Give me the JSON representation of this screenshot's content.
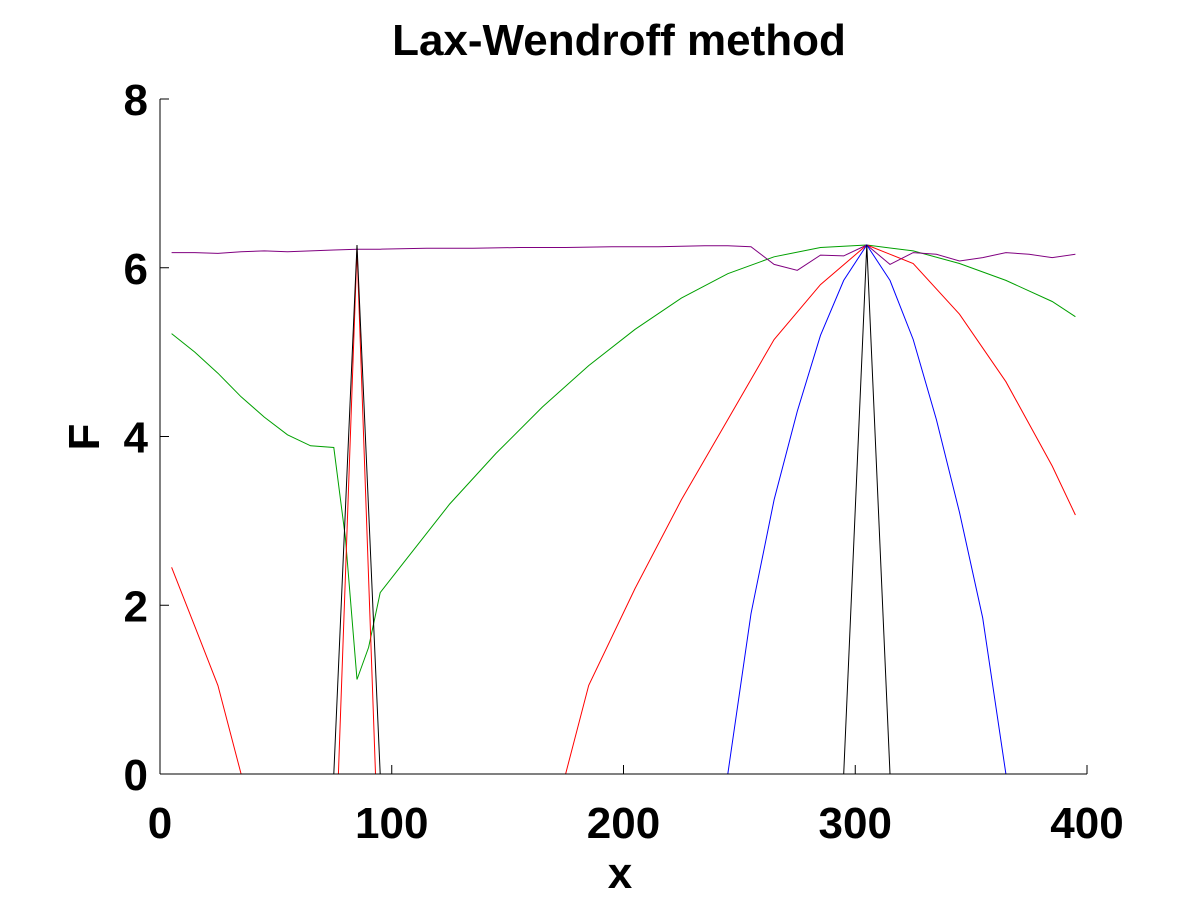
{
  "chart_data": {
    "type": "line",
    "title": "Lax-Wendroff method",
    "xlabel": "x",
    "ylabel": "F",
    "xlim": [
      0,
      400
    ],
    "ylim": [
      0,
      8
    ],
    "xticks": [
      0,
      100,
      200,
      300,
      400
    ],
    "yticks": [
      0,
      2,
      4,
      6,
      8
    ],
    "grid": false,
    "series": [
      {
        "color": "#00a000",
        "x": [
          5,
          15,
          25,
          35,
          45,
          55,
          65,
          75,
          80,
          85,
          90,
          95,
          105,
          125,
          145,
          165,
          185,
          205,
          225,
          245,
          265,
          285,
          305,
          325,
          345,
          365,
          385,
          395
        ],
        "y": [
          5.22,
          5.0,
          4.75,
          4.47,
          4.23,
          4.02,
          3.89,
          3.87,
          2.8,
          1.12,
          1.5,
          2.15,
          2.5,
          3.2,
          3.8,
          4.35,
          4.84,
          5.27,
          5.64,
          5.93,
          6.13,
          6.24,
          6.27,
          6.2,
          6.05,
          5.85,
          5.6,
          5.42
        ]
      },
      {
        "color": "#ff0000",
        "x": [
          5,
          15,
          25,
          35,
          45,
          55,
          65,
          75,
          77,
          85,
          93,
          95,
          105,
          125,
          145,
          175,
          185,
          205,
          225,
          245,
          265,
          285,
          305,
          325,
          345,
          365,
          385,
          395
        ],
        "y": [
          2.45,
          1.75,
          1.05,
          0,
          0,
          0,
          0,
          0,
          0,
          6.22,
          0,
          0,
          0,
          0,
          0,
          0,
          1.05,
          2.2,
          3.25,
          4.2,
          5.15,
          5.8,
          6.27,
          6.05,
          5.45,
          4.65,
          3.65,
          3.07
        ]
      },
      {
        "color": "#800080",
        "x": [
          5,
          15,
          25,
          35,
          45,
          55,
          65,
          75,
          85,
          95,
          115,
          135,
          155,
          175,
          195,
          215,
          235,
          245,
          255,
          265,
          275,
          285,
          295,
          305,
          315,
          325,
          335,
          345,
          355,
          365,
          375,
          385,
          395
        ],
        "y": [
          6.18,
          6.18,
          6.17,
          6.19,
          6.2,
          6.19,
          6.2,
          6.21,
          6.22,
          6.22,
          6.23,
          6.23,
          6.24,
          6.24,
          6.25,
          6.25,
          6.26,
          6.26,
          6.25,
          6.04,
          5.97,
          6.15,
          6.14,
          6.27,
          6.04,
          6.18,
          6.16,
          6.08,
          6.12,
          6.18,
          6.16,
          6.12,
          6.16
        ]
      },
      {
        "color": "#0000ff",
        "x": [
          5,
          245,
          255,
          265,
          275,
          285,
          295,
          305,
          315,
          325,
          335,
          345,
          355,
          365,
          395
        ],
        "y": [
          0,
          0,
          1.9,
          3.25,
          4.3,
          5.2,
          5.85,
          6.27,
          5.85,
          5.15,
          4.2,
          3.1,
          1.85,
          0,
          0
        ]
      },
      {
        "color": "#000000",
        "x": [
          75,
          85,
          95,
          295,
          305,
          315
        ],
        "y": [
          0,
          6.27,
          0,
          0,
          6.27,
          0
        ],
        "segments": [
          [
            0,
            3
          ],
          [
            3,
            6
          ]
        ]
      }
    ]
  }
}
